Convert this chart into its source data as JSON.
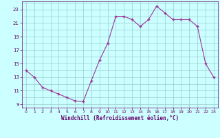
{
  "x": [
    0,
    1,
    2,
    3,
    4,
    5,
    6,
    7,
    8,
    9,
    10,
    11,
    12,
    13,
    14,
    15,
    16,
    17,
    18,
    19,
    20,
    21,
    22,
    23
  ],
  "y": [
    14.0,
    13.0,
    11.5,
    11.0,
    10.5,
    10.0,
    9.5,
    9.4,
    12.5,
    15.5,
    18.0,
    22.0,
    22.0,
    21.5,
    20.5,
    21.5,
    23.5,
    22.5,
    21.5,
    21.5,
    21.5,
    20.5,
    15.0,
    13.0
  ],
  "line_color": "#993399",
  "marker_color": "#993399",
  "bg_color": "#ccffff",
  "grid_color": "#99cccc",
  "tick_color": "#660066",
  "label_color": "#660066",
  "xlabel": "Windchill (Refroidissement éolien,°C)",
  "xlim": [
    -0.5,
    23.5
  ],
  "ylim": [
    8.5,
    24.2
  ],
  "yticks": [
    9,
    11,
    13,
    15,
    17,
    19,
    21,
    23
  ],
  "xticks": [
    0,
    1,
    2,
    3,
    4,
    5,
    6,
    7,
    8,
    9,
    10,
    11,
    12,
    13,
    14,
    15,
    16,
    17,
    18,
    19,
    20,
    21,
    22,
    23
  ]
}
